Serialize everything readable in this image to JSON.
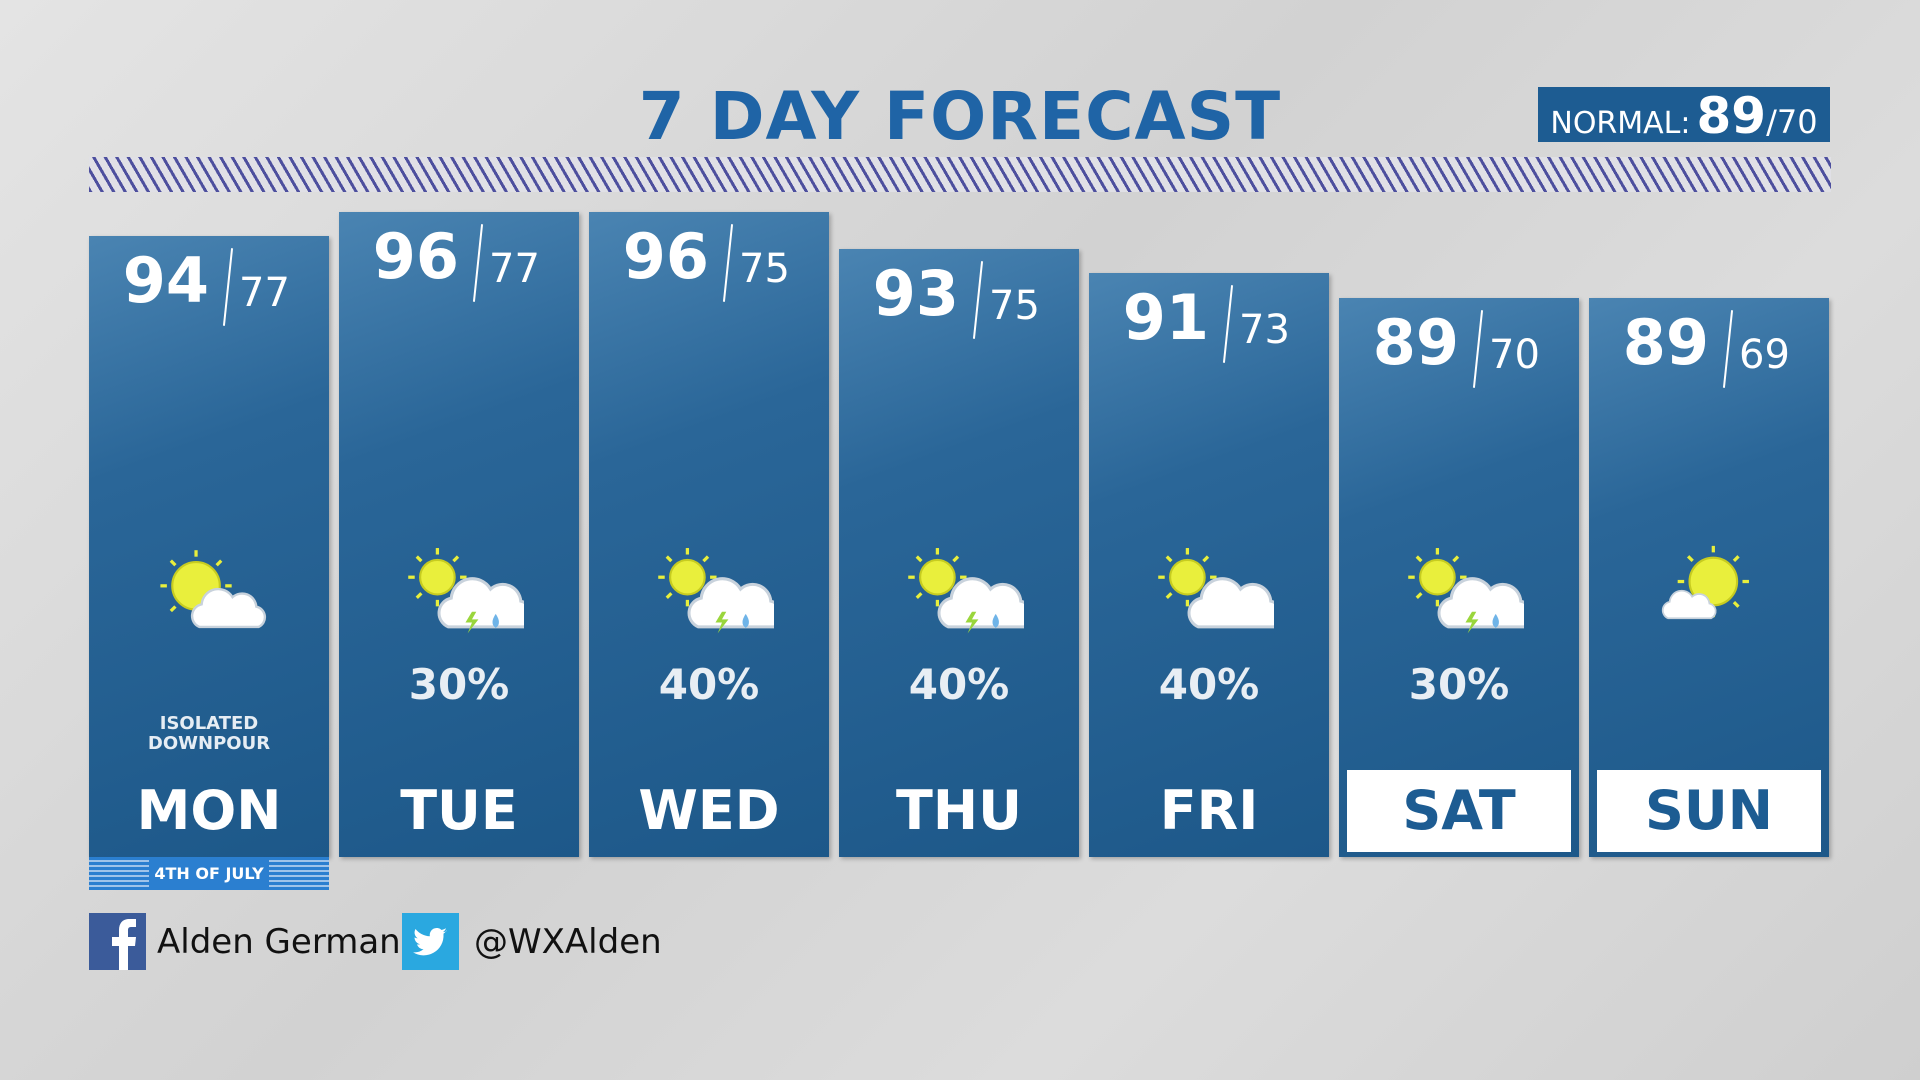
{
  "header": {
    "title": "7 DAY FORECAST",
    "normal": {
      "label": "NORMAL:",
      "high": 89,
      "low": 70
    }
  },
  "days": [
    {
      "name": "MON",
      "high": 94,
      "low": 77,
      "note": "ISOLATED DOWNPOUR",
      "badge": "4TH OF JULY"
    },
    {
      "name": "TUE",
      "high": 96,
      "low": 77,
      "precip": "30%"
    },
    {
      "name": "WED",
      "high": 96,
      "low": 75,
      "precip": "40%"
    },
    {
      "name": "THU",
      "high": 93,
      "low": 75,
      "precip": "40%"
    },
    {
      "name": "FRI",
      "high": 91,
      "low": 73,
      "precip": "40%"
    },
    {
      "name": "SAT",
      "high": 89,
      "low": 70,
      "precip": "30%"
    },
    {
      "name": "SUN",
      "high": 89,
      "low": 69
    }
  ],
  "social": {
    "facebook": "Alden German",
    "twitter": "@WXAlden"
  }
}
